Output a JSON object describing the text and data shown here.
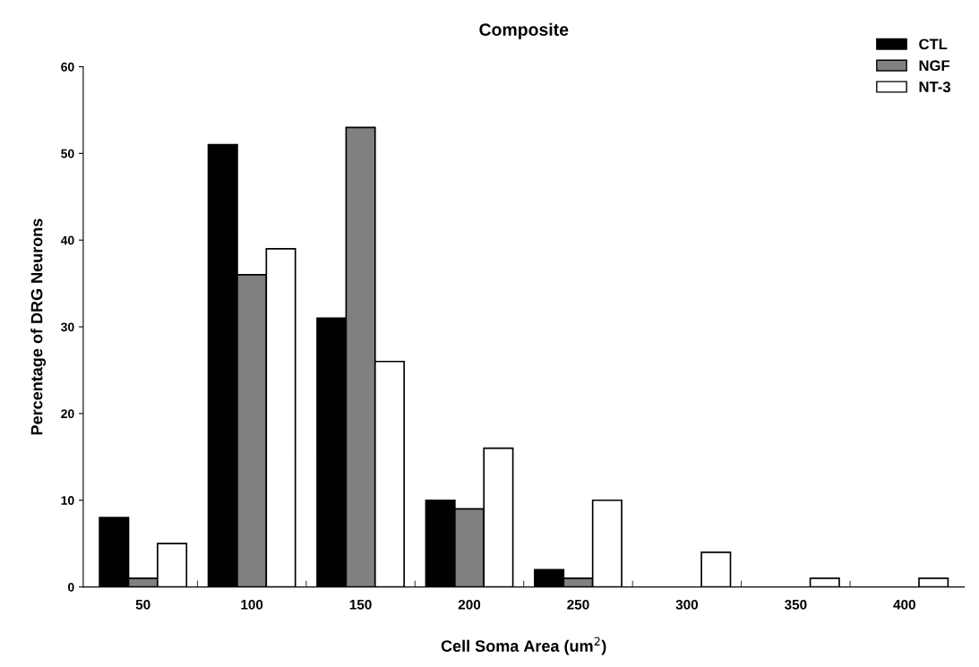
{
  "chart_data": {
    "type": "bar",
    "title": "Composite",
    "xlabel": "Cell Soma Area (um$^{2}$)",
    "ylabel": "Percentage of DRG Neurons",
    "categories": [
      "50",
      "100",
      "150",
      "200",
      "250",
      "300",
      "350",
      "400"
    ],
    "series": [
      {
        "name": "CTL",
        "color": "#000000",
        "values": [
          8,
          51,
          31,
          10,
          2,
          0,
          0,
          0
        ]
      },
      {
        "name": "NGF",
        "color": "#808080",
        "values": [
          1,
          36,
          53,
          9,
          1,
          0,
          0,
          0
        ]
      },
      {
        "name": "NT-3",
        "color": "#ffffff",
        "values": [
          5,
          39,
          26,
          16,
          10,
          4,
          1,
          1
        ]
      }
    ],
    "ylim": [
      0,
      60
    ],
    "yticks": [
      0,
      10,
      20,
      30,
      40,
      50,
      60
    ],
    "grid": false,
    "legend": "top right"
  }
}
